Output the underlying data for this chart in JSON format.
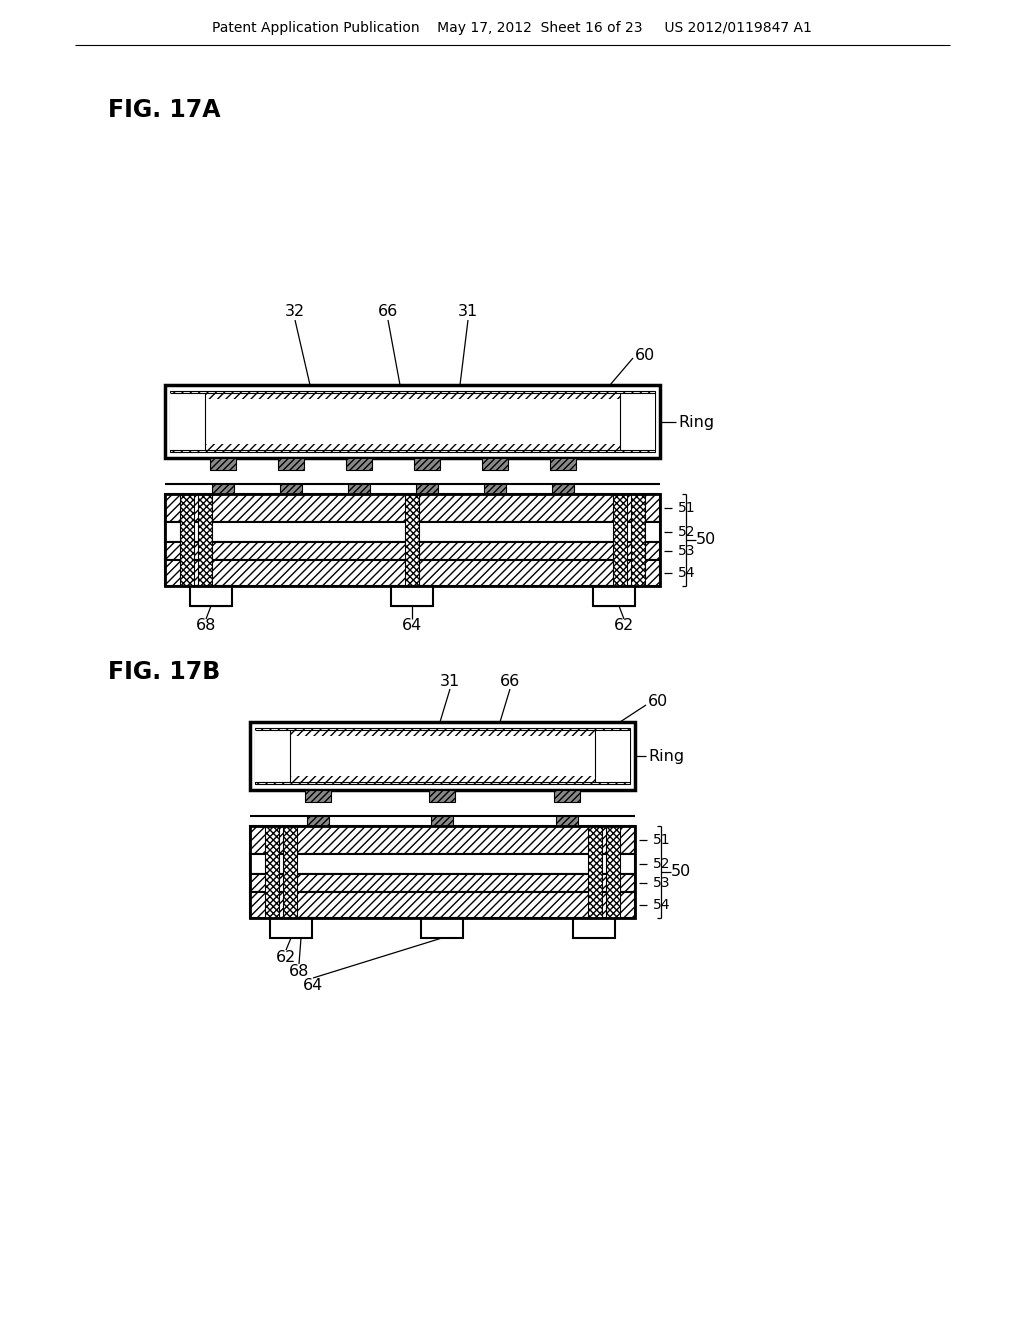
{
  "bg_color": "#ffffff",
  "header_text": "Patent Application Publication    May 17, 2012  Sheet 16 of 23     US 2012/0119847 A1",
  "fig17a_label": "FIG. 17A",
  "fig17b_label": "FIG. 17B",
  "text_color": "#000000"
}
